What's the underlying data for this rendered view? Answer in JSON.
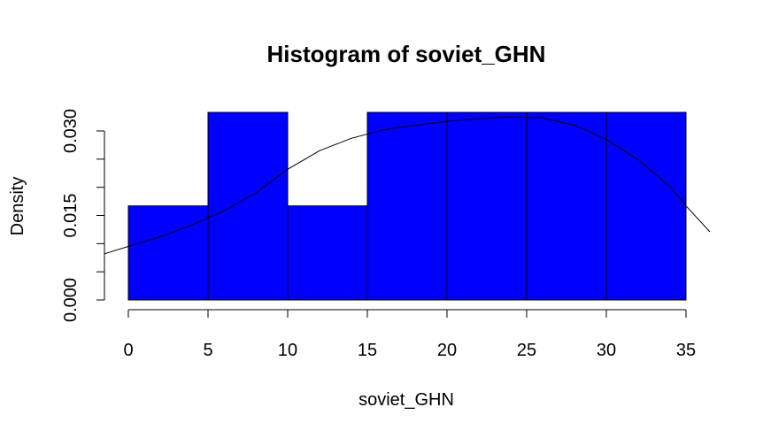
{
  "chart_data": {
    "type": "bar",
    "title": "Histogram of soviet_GHN",
    "xlabel": "soviet_GHN",
    "ylabel": "Density",
    "bin_edges": [
      0,
      5,
      10,
      15,
      20,
      25,
      30,
      35
    ],
    "values": [
      0.0167,
      0.0333,
      0.0167,
      0.0333,
      0.0333,
      0.0333,
      0.0333
    ],
    "bar_color": "#0000ff",
    "xlim": [
      -1.5,
      36.5
    ],
    "ylim": [
      0,
      0.0333
    ],
    "x_ticks": [
      0,
      5,
      10,
      15,
      20,
      25,
      30,
      35
    ],
    "x_tick_labels": [
      "0",
      "5",
      "10",
      "15",
      "20",
      "25",
      "30",
      "35"
    ],
    "y_ticks": [
      0,
      0.005,
      0.01,
      0.015,
      0.02,
      0.025,
      0.03
    ],
    "y_tick_labels": [
      "0.000",
      "",
      "",
      "0.015",
      "",
      "",
      "0.030"
    ],
    "density_curve": {
      "x": [
        -1.5,
        0,
        2,
        4,
        6,
        8,
        10,
        12,
        14,
        16,
        18,
        20,
        22,
        24,
        26,
        28,
        30,
        32,
        34,
        35,
        36.5
      ],
      "y": [
        0.0082,
        0.0095,
        0.0112,
        0.0133,
        0.0158,
        0.019,
        0.0232,
        0.0265,
        0.0287,
        0.0302,
        0.031,
        0.0317,
        0.0322,
        0.0325,
        0.0323,
        0.031,
        0.0285,
        0.0249,
        0.0201,
        0.0167,
        0.0121
      ]
    },
    "grid": false,
    "legend": "none"
  }
}
